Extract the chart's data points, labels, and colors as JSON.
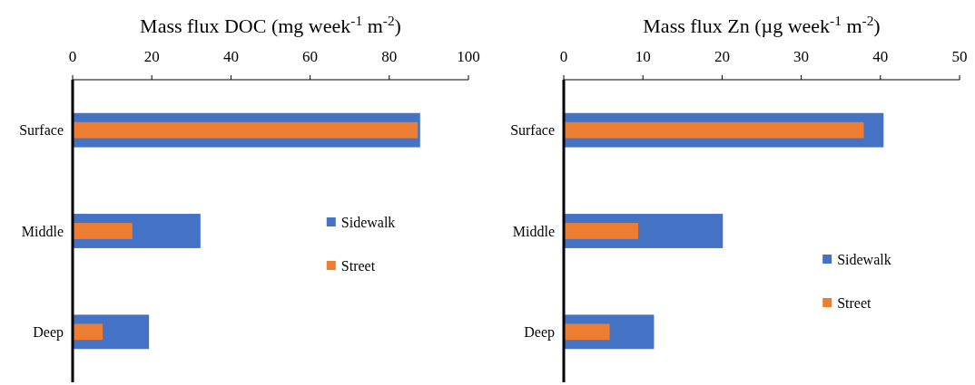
{
  "chart_data": [
    {
      "type": "bar",
      "orientation": "horizontal",
      "title": "Mass flux DOC (mg week$^{-1}$ m$^{-2}$)",
      "categories": [
        "Surface",
        "Middle",
        "Deep"
      ],
      "xlim": [
        0,
        100
      ],
      "xticks": [
        0,
        20,
        40,
        60,
        80,
        100
      ],
      "grid": false,
      "legend": "right",
      "series": [
        {
          "name": "Sidewalk",
          "color": "#4472c4",
          "values": [
            87.8,
            32.3,
            19.3
          ]
        },
        {
          "name": "Street",
          "color": "#ed7d31",
          "values": [
            87.2,
            15.1,
            7.6
          ]
        }
      ]
    },
    {
      "type": "bar",
      "orientation": "horizontal",
      "title": "Mass flux Zn (µg week$^{-1}$ m$^{-2}$)",
      "categories": [
        "Surface",
        "Middle",
        "Deep"
      ],
      "xlim": [
        0,
        50
      ],
      "xticks": [
        0,
        10,
        20,
        30,
        40,
        50
      ],
      "grid": false,
      "legend": "right",
      "series": [
        {
          "name": "Sidewalk",
          "color": "#4472c4",
          "values": [
            40.4,
            20.1,
            11.4
          ]
        },
        {
          "name": "Street",
          "color": "#ed7d31",
          "values": [
            37.9,
            9.4,
            5.8
          ]
        }
      ]
    }
  ]
}
